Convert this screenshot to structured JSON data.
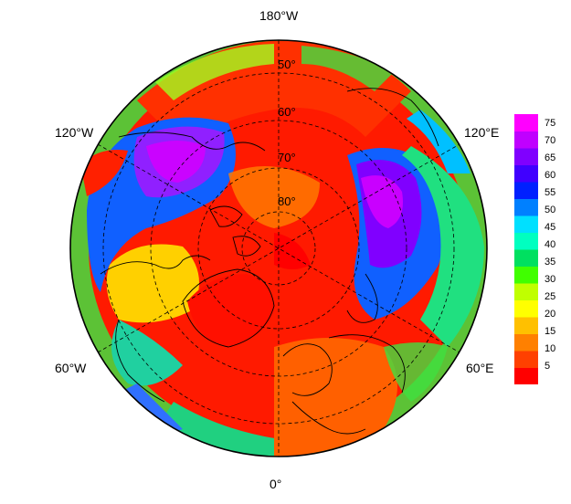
{
  "map": {
    "projection": "north-polar-stereographic",
    "longitude_labels": [
      "180°W",
      "120°W",
      "120°E",
      "60°W",
      "60°E",
      "0°"
    ],
    "latitude_labels": [
      "50°",
      "60°",
      "70°",
      "80°"
    ]
  },
  "colorbar": {
    "ticks": [
      "75",
      "70",
      "65",
      "60",
      "55",
      "50",
      "45",
      "40",
      "35",
      "30",
      "25",
      "20",
      "15",
      "10",
      "5"
    ],
    "range": [
      0,
      78
    ],
    "colors": [
      "#ff0000",
      "#ff4000",
      "#ff8000",
      "#ffc000",
      "#ffff00",
      "#c0ff00",
      "#40ff00",
      "#00e060",
      "#00ffc0",
      "#00e0ff",
      "#0080ff",
      "#0020ff",
      "#4000ff",
      "#8000ff",
      "#c000ff",
      "#ff00ff"
    ]
  }
}
